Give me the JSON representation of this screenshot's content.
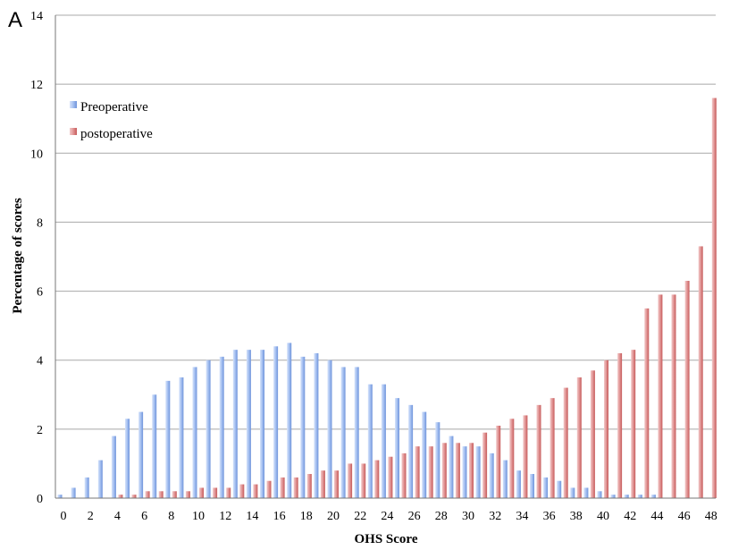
{
  "panel_label": "A",
  "colors": {
    "preoperative": "#8fb0ea",
    "postoperative": "#d97a7a",
    "grid": "#a8a8a8"
  },
  "chart_data": {
    "type": "bar",
    "xlabel": "OHS Score",
    "ylabel": "Percentage of scores",
    "ylim": [
      0,
      14
    ],
    "y_ticks": [
      "0",
      "2",
      "4",
      "6",
      "8",
      "10",
      "12",
      "14"
    ],
    "x": [
      0,
      1,
      2,
      3,
      4,
      5,
      6,
      7,
      8,
      9,
      10,
      11,
      12,
      13,
      14,
      15,
      16,
      17,
      18,
      19,
      20,
      21,
      22,
      23,
      24,
      25,
      26,
      27,
      28,
      29,
      30,
      31,
      32,
      33,
      34,
      35,
      36,
      37,
      38,
      39,
      40,
      41,
      42,
      43,
      44,
      45,
      46,
      47,
      48
    ],
    "x_tick_labels": [
      "0",
      "2",
      "4",
      "6",
      "8",
      "10",
      "12",
      "14",
      "16",
      "18",
      "20",
      "22",
      "24",
      "26",
      "28",
      "30",
      "32",
      "34",
      "36",
      "38",
      "40",
      "42",
      "44",
      "46",
      "48"
    ],
    "grid": true,
    "legend_position": "top-left",
    "series": [
      {
        "name": "Preoperative",
        "values": [
          0.1,
          0.3,
          0.6,
          1.1,
          1.8,
          2.3,
          2.5,
          3.0,
          3.4,
          3.5,
          3.8,
          4.0,
          4.1,
          4.3,
          4.3,
          4.3,
          4.4,
          4.5,
          4.1,
          4.2,
          4.0,
          3.8,
          3.8,
          3.3,
          3.3,
          2.9,
          2.7,
          2.5,
          2.2,
          1.8,
          1.5,
          1.5,
          1.3,
          1.1,
          0.8,
          0.7,
          0.6,
          0.5,
          0.3,
          0.3,
          0.2,
          0.1,
          0.1,
          0.1,
          0.1,
          0.0,
          0.0,
          0.0,
          0.0
        ]
      },
      {
        "name": "postoperative",
        "values": [
          0.0,
          0.0,
          0.0,
          0.0,
          0.1,
          0.1,
          0.2,
          0.2,
          0.2,
          0.2,
          0.3,
          0.3,
          0.3,
          0.4,
          0.4,
          0.5,
          0.6,
          0.6,
          0.7,
          0.8,
          0.8,
          1.0,
          1.0,
          1.1,
          1.2,
          1.3,
          1.5,
          1.5,
          1.6,
          1.6,
          1.6,
          1.9,
          2.1,
          2.3,
          2.4,
          2.7,
          2.9,
          3.2,
          3.5,
          3.7,
          4.0,
          4.2,
          4.3,
          5.5,
          5.9,
          5.9,
          6.3,
          7.3,
          11.6
        ]
      }
    ]
  }
}
